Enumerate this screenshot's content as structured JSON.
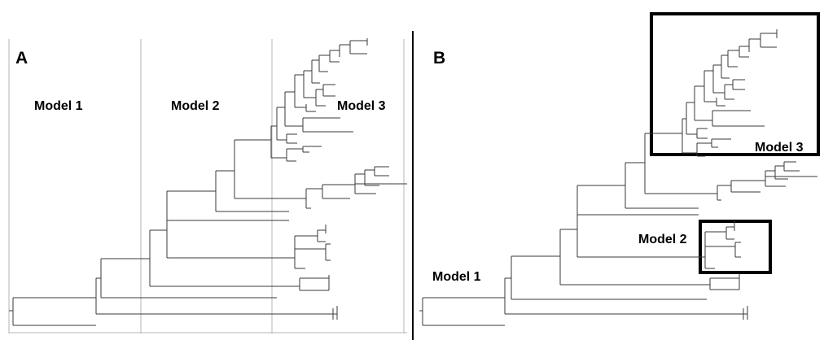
{
  "panels": [
    {
      "letter": "A",
      "labels": [
        "Model 1",
        "Model 2",
        "Model 3"
      ]
    },
    {
      "letter": "B",
      "labels": [
        "Model 1",
        "Model 2",
        "Model 3"
      ]
    }
  ]
}
